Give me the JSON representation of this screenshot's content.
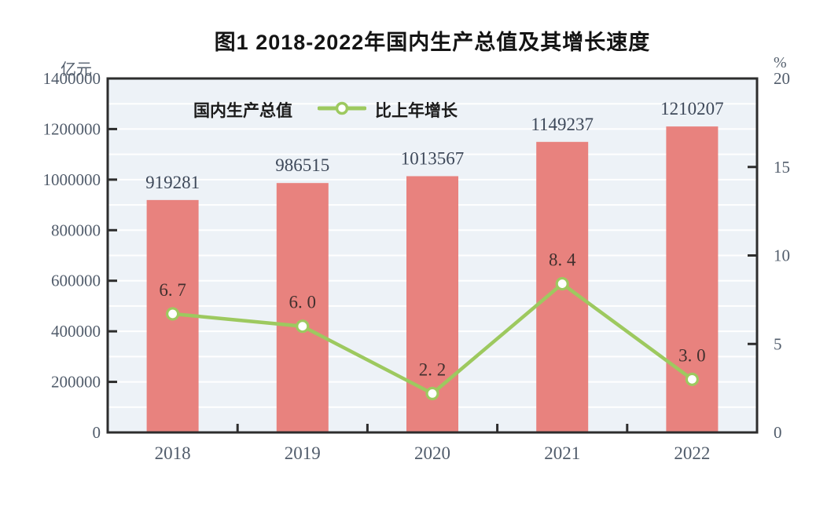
{
  "title": "图1  2018-2022年国内生产总值及其增长速度",
  "legend": {
    "bar_label": "国内生产总值",
    "line_label": "比上年增长"
  },
  "colors": {
    "bar": "#e8827e",
    "line": "#9dc95f",
    "marker_fill": "#ffffff",
    "plot_bg": "#edf2f7",
    "gridline": "#ffffff",
    "border": "#2d2d2d",
    "axis_text": "#515c6b",
    "bar_label_text": "#3d4859",
    "line_label_text": "#42302e",
    "title_text": "#141414"
  },
  "chart_data": {
    "type": "combo",
    "title": "图1  2018-2022年国内生产总值及其增长速度",
    "categories": [
      "2018",
      "2019",
      "2020",
      "2021",
      "2022"
    ],
    "series": [
      {
        "name": "国内生产总值",
        "type": "bar",
        "axis": "left",
        "color": "#e8827e",
        "values": [
          919281,
          986515,
          1013567,
          1149237,
          1210207
        ],
        "labels": [
          "919281",
          "986515",
          "1013567",
          "1149237",
          "1210207"
        ]
      },
      {
        "name": "比上年增长",
        "type": "line",
        "axis": "right",
        "color": "#9dc95f",
        "values": [
          6.7,
          6.0,
          2.2,
          8.4,
          3.0
        ],
        "labels": [
          "6. 7",
          "6. 0",
          "2. 2",
          "8. 4",
          "3. 0"
        ]
      }
    ],
    "left_axis": {
      "label": "亿元",
      "min": 0,
      "max": 1400000,
      "tick_interval": 200000,
      "ticks": [
        "1400000",
        "1200000",
        "1000000",
        "800000",
        "600000",
        "400000",
        "200000",
        "0"
      ]
    },
    "right_axis": {
      "label": "%",
      "min": 0,
      "max": 20,
      "tick_interval": 5,
      "ticks": [
        "20",
        "15",
        "10",
        "5",
        "0"
      ]
    },
    "grid": {
      "on": true,
      "left_interval": 100000,
      "color": "#ffffff"
    },
    "legend_position": "top-inside"
  }
}
